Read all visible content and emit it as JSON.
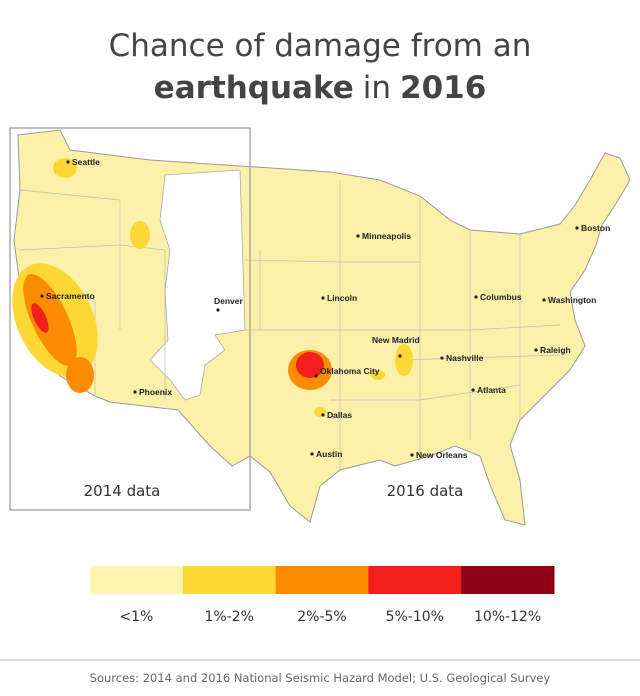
{
  "title": {
    "line1": "Chance of damage from an",
    "line2": [
      {
        "text": "earthquake",
        "bold": true
      },
      {
        "text": "in",
        "bold": false
      },
      {
        "text": "2016",
        "bold": true
      }
    ]
  },
  "panels": {
    "left": "2014 data",
    "right": "2016 data"
  },
  "cities": [
    "Seattle",
    "Sacramento",
    "Phoenix",
    "Denver",
    "Minneapolis",
    "Lincoln",
    "Boston",
    "Columbus",
    "Washington",
    "New Madrid",
    "Nashville",
    "Raleigh",
    "Oklahoma City",
    "Dallas",
    "Austin",
    "Atlanta",
    "New Orleans"
  ],
  "legend": [
    {
      "label": "<1%",
      "color": "#fff3b0"
    },
    {
      "label": "1%-2%",
      "color": "#fdd835"
    },
    {
      "label": "2%-5%",
      "color": "#fb8c00"
    },
    {
      "label": "5%-10%",
      "color": "#f21f1f"
    },
    {
      "label": "10%-12%",
      "color": "#8e0016"
    }
  ],
  "source": "Sources: 2014 and 2016 National Seismic Hazard Model; U.S. Geological Survey"
}
